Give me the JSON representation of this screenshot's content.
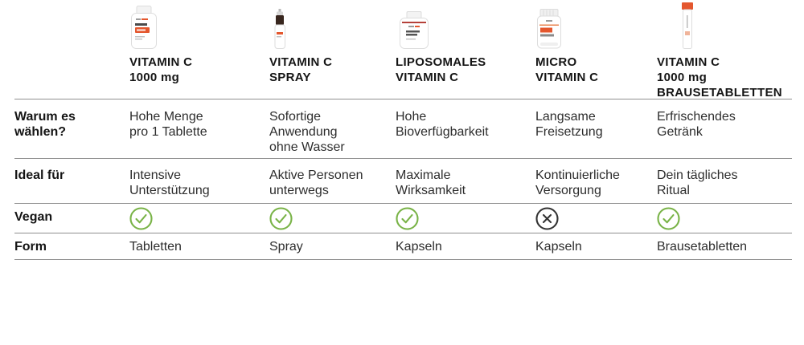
{
  "colors": {
    "accent_orange": "#e4572e",
    "check_green": "#79b347",
    "cross_dark": "#333333",
    "line_gray": "#8f8f8f"
  },
  "products": [
    {
      "name": "VITAMIN C\n1000 mg",
      "image": "vitamin-c-1000-bottle"
    },
    {
      "name": "VITAMIN C\nSPRAY",
      "image": "vitamin-c-spray-bottle"
    },
    {
      "name": "LIPOSOMALES\nVITAMIN C",
      "image": "liposomales-vitamin-c-bottle"
    },
    {
      "name": "MICRO\nVITAMIN C",
      "image": "micro-vitamin-c-jar"
    },
    {
      "name": "VITAMIN C\n1000 mg\nBRAUSETABLETTEN",
      "image": "brausetabletten-tube"
    }
  ],
  "rows": {
    "why": {
      "label": "Warum es\nwählen?",
      "values": [
        "Hohe Menge\npro 1 Tablette",
        "Sofortige\nAnwendung\nohne Wasser",
        "Hohe\nBioverfügbarkeit",
        "Langsame\nFreisetzung",
        "Erfrischendes\nGetränk"
      ]
    },
    "ideal": {
      "label": "Ideal für",
      "values": [
        "Intensive\nUnterstützung",
        "Aktive Personen\nunterwegs",
        "Maximale\nWirksamkeit",
        "Kontinuierliche\nVersorgung",
        "Dein tägliches\nRitual"
      ]
    },
    "vegan": {
      "label": "Vegan",
      "values": [
        "yes",
        "yes",
        "yes",
        "no",
        "yes"
      ]
    },
    "form": {
      "label": "Form",
      "values": [
        "Tabletten",
        "Spray",
        "Kapseln",
        "Kapseln",
        "Brausetabletten"
      ]
    }
  }
}
